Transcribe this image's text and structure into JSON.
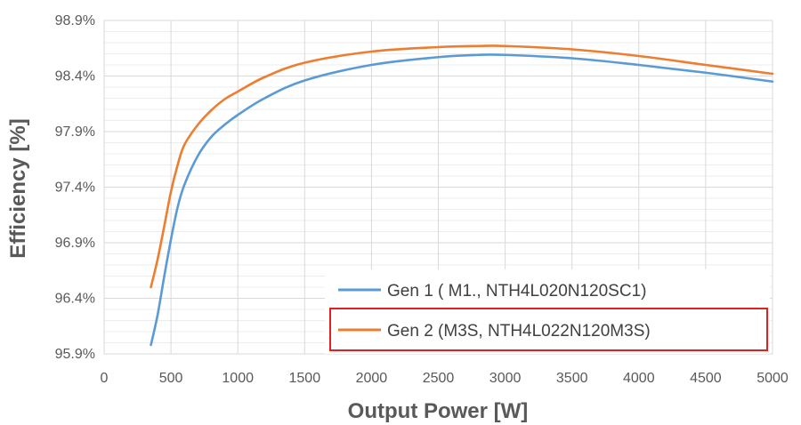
{
  "chart_data": {
    "type": "line",
    "xlabel": "Output Power [W]",
    "ylabel": "Efficiency [%]",
    "xlim": [
      0,
      5000
    ],
    "ylim": [
      95.9,
      98.9
    ],
    "x_ticks": [
      0,
      500,
      1000,
      1500,
      2000,
      2500,
      3000,
      3500,
      4000,
      4500,
      5000
    ],
    "x_tick_labels": [
      "0",
      "500",
      "1000",
      "1500",
      "2000",
      "2500",
      "3000",
      "3500",
      "4000",
      "4500",
      "5000"
    ],
    "y_ticks": [
      95.9,
      96.4,
      96.9,
      97.4,
      97.9,
      98.4,
      98.9
    ],
    "y_tick_labels": [
      "95.9%",
      "96.4%",
      "96.9%",
      "97.4%",
      "97.9%",
      "98.4%",
      "98.9%"
    ],
    "grid": true,
    "legend_position": "bottom-right",
    "series": [
      {
        "name": "Gen 1 ( M1., NTH4L020N120SC1)",
        "color": "#5b9bd5",
        "x": [
          350,
          400,
          450,
          500,
          550,
          600,
          700,
          800,
          900,
          1000,
          1200,
          1500,
          2000,
          2500,
          2800,
          3000,
          3500,
          4000,
          4500,
          5000
        ],
        "y": [
          95.98,
          96.25,
          96.6,
          96.93,
          97.22,
          97.42,
          97.68,
          97.85,
          97.96,
          98.05,
          98.2,
          98.36,
          98.5,
          98.57,
          98.59,
          98.59,
          98.56,
          98.5,
          98.43,
          98.35
        ]
      },
      {
        "name": "Gen 2 (M3S, NTH4L022N120M3S)",
        "color": "#ed7d31",
        "x": [
          350,
          400,
          450,
          500,
          550,
          600,
          700,
          800,
          900,
          1000,
          1200,
          1500,
          2000,
          2500,
          2800,
          3000,
          3500,
          4000,
          4500,
          5000
        ],
        "y": [
          96.5,
          96.75,
          97.05,
          97.36,
          97.6,
          97.78,
          97.96,
          98.09,
          98.19,
          98.26,
          98.39,
          98.52,
          98.62,
          98.66,
          98.67,
          98.67,
          98.64,
          98.58,
          98.5,
          98.42
        ]
      }
    ]
  }
}
